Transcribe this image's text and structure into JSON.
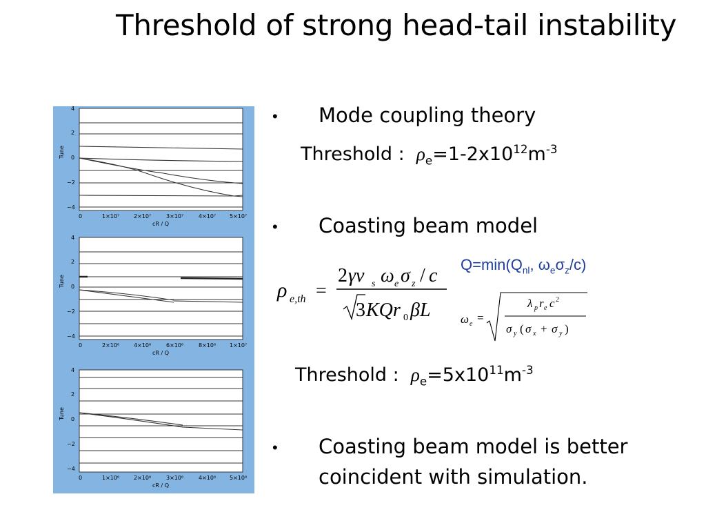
{
  "title": "Threshold of strong head-tail instability",
  "bullets": [
    {
      "glyph": "•",
      "text": "Mode coupling theory"
    },
    {
      "glyph": "•",
      "text": "Coasting beam model"
    },
    {
      "glyph": "•",
      "line1": "Coasting beam model is better",
      "line2": "coincident with simulation."
    }
  ],
  "threshold1": {
    "label": "Threshold :",
    "rho": "ρ",
    "sub": "e",
    "value": "=1-2x10",
    "exp": "12",
    "unit": "m",
    "unit_exp": "-3"
  },
  "threshold2": {
    "label": "Threshold :",
    "rho": "ρ",
    "sub": "e",
    "value": "=5x10",
    "exp": "11",
    "unit": "m",
    "unit_exp": "-3"
  },
  "q_formula": {
    "pre": "Q=min(Q",
    "sub1": "nl",
    "mid": ", ω",
    "sub2": "e",
    "sigma": "σ",
    "sub3": "z",
    "post": "/c)"
  },
  "colors": {
    "figure_bg": "#84b4e2",
    "formula_blue": "#1f3e9e"
  },
  "plots": [
    {
      "ylabel": "Tune",
      "xlabel": "cR / Q",
      "yticks": [
        "4",
        "2",
        "0",
        "−2",
        "−4"
      ],
      "xticks": [
        "0",
        "1×10⁷",
        "2×10⁷",
        "3×10⁷",
        "4×10⁷",
        "5×10⁷"
      ]
    },
    {
      "ylabel": "Tune",
      "xlabel": "cR / Q",
      "yticks": [
        "4",
        "2",
        "0",
        "−2",
        "−4"
      ],
      "xticks": [
        "0",
        "2×10⁶",
        "4×10⁶",
        "6×10⁶",
        "8×10⁶",
        "1×10⁷"
      ]
    },
    {
      "ylabel": "Tune",
      "xlabel": "cR / Q",
      "yticks": [
        "4",
        "2",
        "0",
        "−2",
        "−4"
      ],
      "xticks": [
        "0",
        "1×10⁶",
        "2×10⁶",
        "3×10⁶",
        "4×10⁶",
        "5×10⁶"
      ]
    }
  ]
}
